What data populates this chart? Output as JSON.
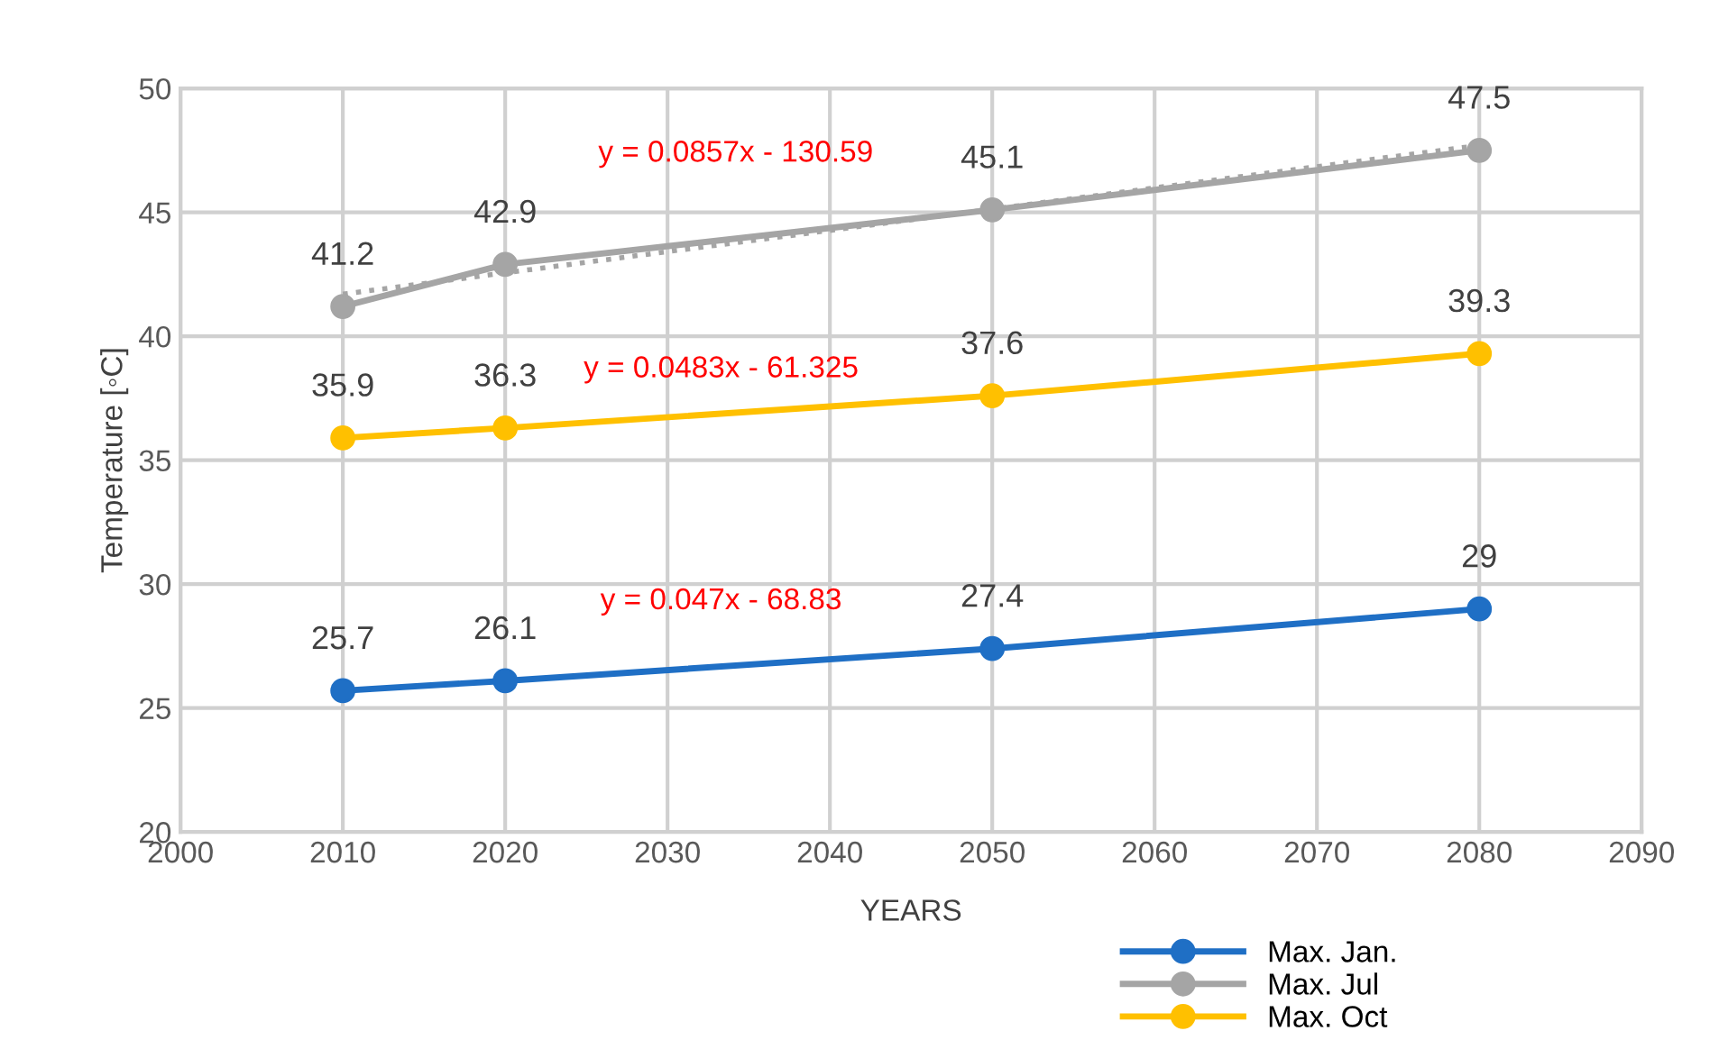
{
  "chart_data": {
    "type": "line",
    "xlabel": "YEARS",
    "ylabel": "Temperature [◦C]",
    "x": [
      2010,
      2020,
      2050,
      2080
    ],
    "series": [
      {
        "name": "Max. Jan.",
        "color": "#1f6fc5",
        "values": [
          25.7,
          26.1,
          27.4,
          29
        ],
        "value_labels": [
          "25.7",
          "26.1",
          "27.4",
          "29"
        ]
      },
      {
        "name": "Max. Jul",
        "color": "#a5a5a5",
        "values": [
          41.2,
          42.9,
          45.1,
          47.5
        ],
        "value_labels": [
          "41.2",
          "42.9",
          "45.1",
          "47.5"
        ]
      },
      {
        "name": "Max. Oct",
        "color": "#ffc000",
        "values": [
          35.9,
          36.3,
          37.6,
          39.3
        ],
        "value_labels": [
          "35.9",
          "36.3",
          "37.6",
          "39.3"
        ]
      },
      {
        "type": "line",
        "color": "#a5a5a5",
        "x": [
          2010,
          2080
        ],
        "values": [
          41.7,
          47.7
        ],
        "line_style": "dotted",
        "marker": "none"
      }
    ],
    "xlim": [
      2000,
      2090
    ],
    "xticks": [
      2000,
      2010,
      2020,
      2030,
      2040,
      2050,
      2060,
      2070,
      2080,
      2090
    ],
    "ylim": [
      20,
      50
    ],
    "yticks": [
      20,
      25,
      30,
      35,
      40,
      45,
      50
    ],
    "annotations": [
      "y = 0.0857x - 130.59",
      "y = 0.0483x - 61.325",
      "y = 0.047x - 68.83"
    ],
    "grid": true,
    "legend": "bottom right",
    "marker": "circle",
    "line_style": "solid"
  }
}
